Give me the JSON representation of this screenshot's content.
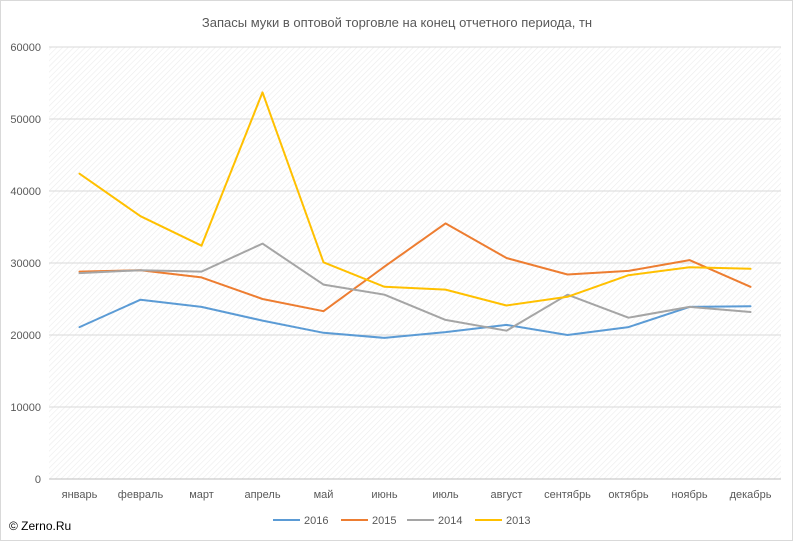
{
  "chart_data": {
    "type": "line",
    "title": "Запасы муки в оптовой торговле на конец отчетного периода, тн",
    "xlabel": "",
    "ylabel": "",
    "categories": [
      "январь",
      "февраль",
      "март",
      "апрель",
      "май",
      "июнь",
      "июль",
      "август",
      "сентябрь",
      "октябрь",
      "ноябрь",
      "декабрь"
    ],
    "ylim": [
      0,
      60000
    ],
    "yticks": [
      0,
      10000,
      20000,
      30000,
      40000,
      50000,
      60000
    ],
    "grid": true,
    "legend_position": "bottom",
    "series": [
      {
        "name": "2016",
        "color": "#5b9bd5",
        "values": [
          21100,
          24900,
          23900,
          22000,
          20300,
          19600,
          20400,
          21400,
          20000,
          21100,
          23900,
          24000
        ]
      },
      {
        "name": "2015",
        "color": "#ed7d31",
        "values": [
          28800,
          29000,
          28000,
          25000,
          23300,
          29500,
          35500,
          30700,
          28400,
          28900,
          30400,
          26700
        ]
      },
      {
        "name": "2014",
        "color": "#a5a5a5",
        "values": [
          28600,
          29000,
          28800,
          32700,
          27000,
          25600,
          22100,
          20600,
          25600,
          22400,
          23900,
          23200
        ]
      },
      {
        "name": "2013",
        "color": "#ffc000",
        "values": [
          42400,
          36500,
          32400,
          53700,
          30100,
          26700,
          26300,
          24100,
          25300,
          28300,
          29400,
          29200
        ]
      }
    ]
  },
  "credit": "© Zerno.Ru"
}
